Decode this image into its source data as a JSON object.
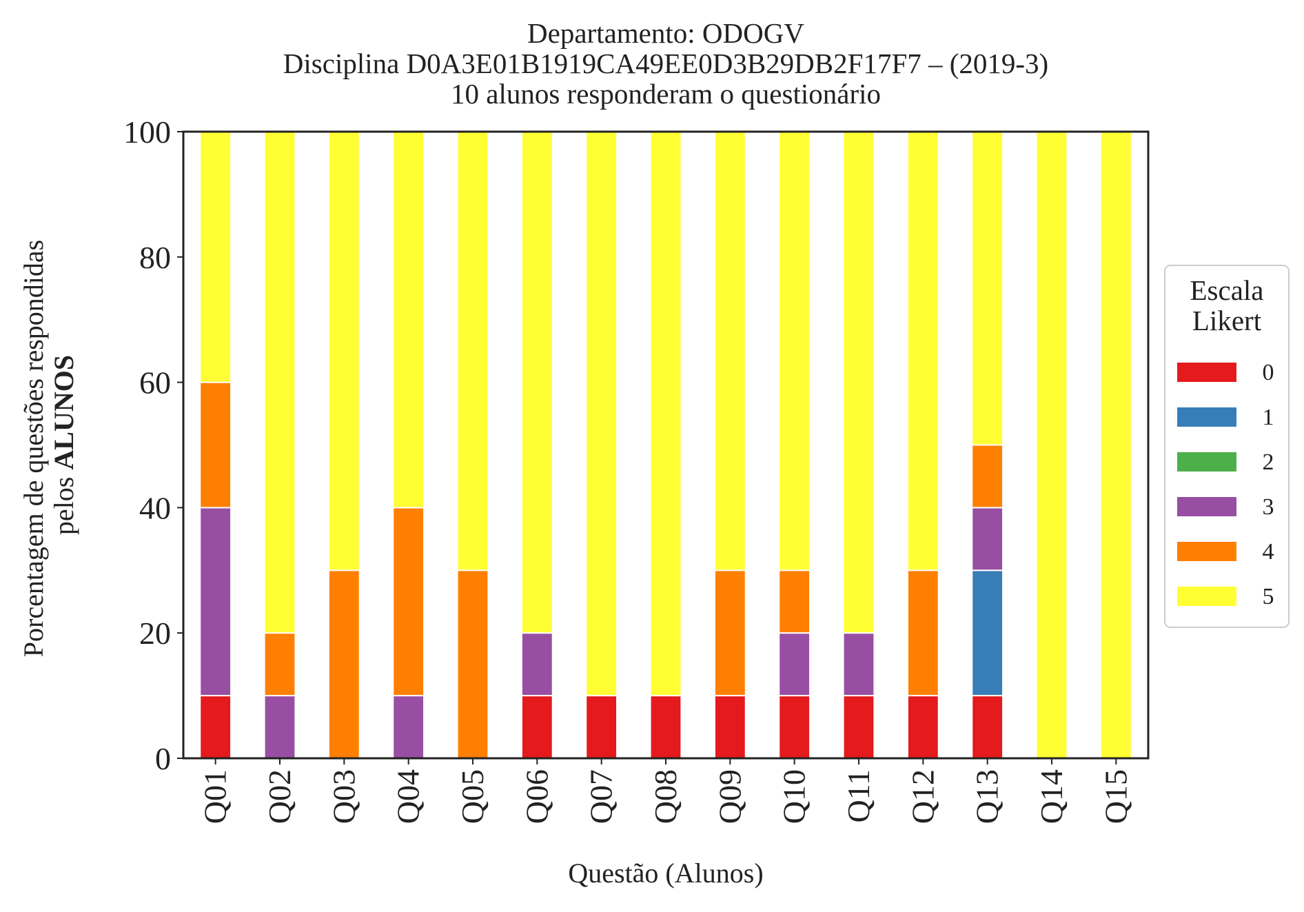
{
  "chart_data": {
    "type": "bar",
    "stacked": true,
    "title": [
      "Departamento: ODOGV",
      "Disciplina D0A3E01B1919CA49EE0D3B29DB2F17F7 – (2019-3)",
      "10 alunos responderam o questionário"
    ],
    "xlabel": "Questão (Alunos)",
    "ylabel_line1": "Porcentagem de questões respondidas",
    "ylabel_line2_plain": "pelos ",
    "ylabel_line2_bold": "ALUNOS",
    "ylim": [
      0,
      100
    ],
    "yticks": [
      "0",
      "20",
      "40",
      "60",
      "80",
      "100"
    ],
    "grid": false,
    "legend_position": "right-center",
    "legend_title": [
      "Escala",
      "Likert"
    ],
    "categories": [
      "Q01",
      "Q02",
      "Q03",
      "Q04",
      "Q05",
      "Q06",
      "Q07",
      "Q08",
      "Q09",
      "Q10",
      "Q11",
      "Q12",
      "Q13",
      "Q14",
      "Q15"
    ],
    "series": [
      {
        "name": "0",
        "color": "#e41a1c",
        "values": [
          10,
          0,
          0,
          0,
          0,
          10,
          10,
          10,
          10,
          10,
          10,
          10,
          10,
          0,
          0
        ]
      },
      {
        "name": "1",
        "color": "#377eb8",
        "values": [
          0,
          0,
          0,
          0,
          0,
          0,
          0,
          0,
          0,
          0,
          0,
          0,
          20,
          0,
          0
        ]
      },
      {
        "name": "2",
        "color": "#4daf4a",
        "values": [
          0,
          0,
          0,
          0,
          0,
          0,
          0,
          0,
          0,
          0,
          0,
          0,
          0,
          0,
          0
        ]
      },
      {
        "name": "3",
        "color": "#984ea3",
        "values": [
          30,
          10,
          0,
          10,
          0,
          10,
          0,
          0,
          0,
          10,
          10,
          0,
          10,
          0,
          0
        ]
      },
      {
        "name": "4",
        "color": "#ff7f00",
        "values": [
          20,
          10,
          30,
          30,
          30,
          0,
          0,
          0,
          20,
          10,
          0,
          20,
          10,
          0,
          0
        ]
      },
      {
        "name": "5",
        "color": "#ffff33",
        "values": [
          40,
          80,
          70,
          60,
          70,
          80,
          90,
          90,
          70,
          70,
          80,
          70,
          50,
          100,
          100
        ]
      }
    ]
  }
}
